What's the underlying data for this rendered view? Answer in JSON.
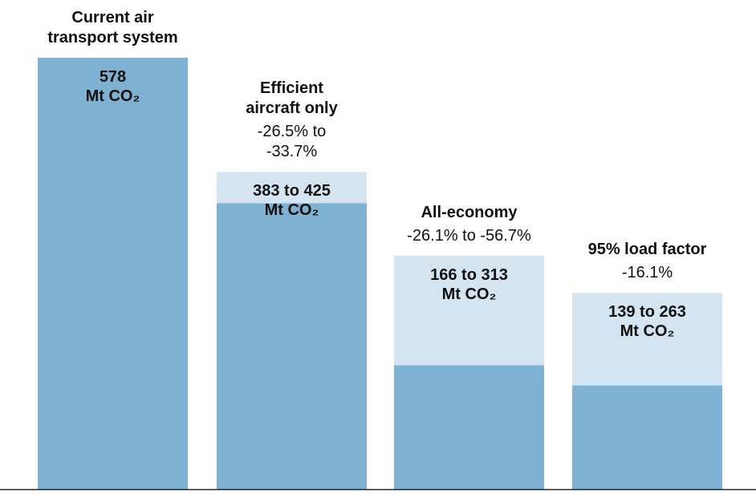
{
  "chart_data": {
    "type": "range_bar",
    "categories": [
      "Current air transport system",
      "Efficient aircraft only",
      "All-economy",
      "95% load factor"
    ],
    "change_labels": [
      null,
      "-26.5% to -33.7%",
      "-26.1% to -56.7%",
      "-16.1%"
    ],
    "values_low": [
      578,
      383,
      166,
      139
    ],
    "values_high": [
      null,
      425,
      313,
      263
    ],
    "value_labels": [
      "578",
      "383 to 425",
      "166 to 313",
      "139 to 263"
    ],
    "unit_label": "Mt CO₂",
    "color_low": "#7fb2d2",
    "color_high": "#d4e5f1"
  }
}
